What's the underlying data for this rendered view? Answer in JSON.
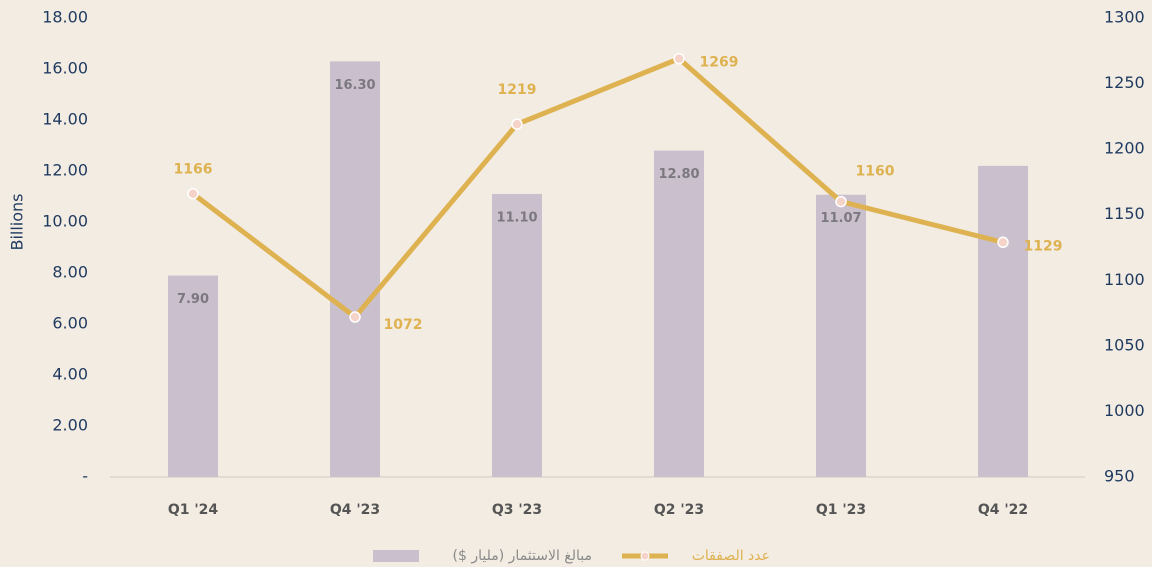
{
  "chart_data": {
    "type": "bar_line",
    "y_label": "Billions",
    "categories": [
      "Q1 '24",
      "Q4 '23",
      "Q3 '23",
      "Q2 '23",
      "Q1 '23",
      "Q4 '22"
    ],
    "series": [
      {
        "name": "مبالغ الاستثمار (مليار $)",
        "type": "bar",
        "color": "#cac0cd",
        "values": [
          7.9,
          16.3,
          11.1,
          12.8,
          11.07,
          12.2
        ],
        "value_labels": [
          "7.90",
          "16.30",
          "11.10",
          "12.80",
          "11.07",
          null
        ]
      },
      {
        "name": "عدد الصفقات",
        "type": "line",
        "axis": "y2",
        "color": "#deb250",
        "values": [
          1166,
          1072,
          1219,
          1269,
          1160,
          1129
        ]
      }
    ],
    "ylim": [
      0,
      18
    ],
    "yticks": [
      {
        "value": 0,
        "label": "-"
      },
      {
        "value": 2,
        "label": "2.00"
      },
      {
        "value": 4,
        "label": "4.00"
      },
      {
        "value": 6,
        "label": "6.00"
      },
      {
        "value": 8,
        "label": "8.00"
      },
      {
        "value": 10,
        "label": "10.00"
      },
      {
        "value": 12,
        "label": "12.00"
      },
      {
        "value": 14,
        "label": "14.00"
      },
      {
        "value": 16,
        "label": "16.00"
      },
      {
        "value": 18,
        "label": "18.00"
      }
    ],
    "y2lim": [
      950,
      1300
    ],
    "y2ticks": [
      950,
      1000,
      1050,
      1100,
      1150,
      1200,
      1250,
      1300
    ],
    "grid": false,
    "legend": "bottom"
  }
}
